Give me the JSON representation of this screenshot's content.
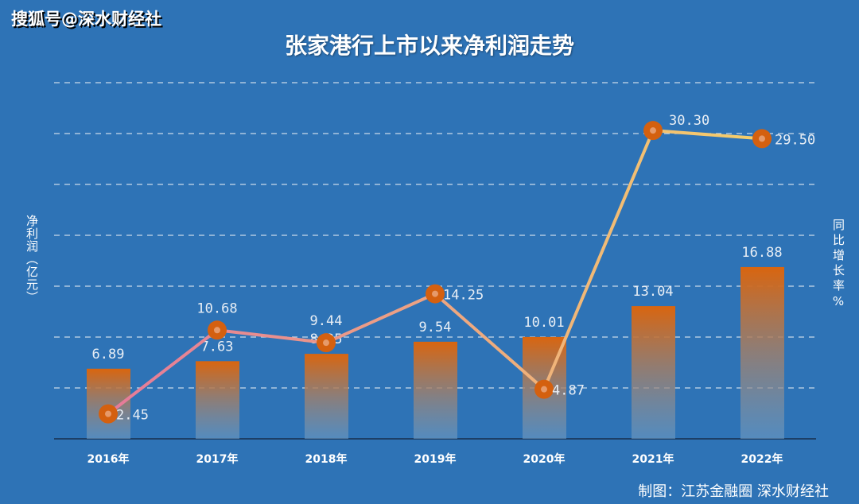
{
  "watermark": "搜狐号@深水财经社",
  "credit": "制图：江苏金融圈 深水财经社",
  "chart_data": {
    "type": "bar+line",
    "title": "张家港行上市以来净利润走势",
    "ylabel": "净利润（亿元）",
    "y2label": "同比增长率%",
    "categories": [
      "2016年",
      "2017年",
      "2018年",
      "2019年",
      "2020年",
      "2021年",
      "2022年"
    ],
    "series": [
      {
        "type": "bar",
        "values": [
          6.89,
          7.63,
          8.35,
          9.54,
          10.01,
          13.04,
          16.88
        ]
      },
      {
        "type": "line",
        "values": [
          2.45,
          10.68,
          9.44,
          14.25,
          4.87,
          30.3,
          29.5
        ]
      }
    ],
    "ylim": [
      0,
      35
    ],
    "grid": true,
    "colors": {
      "background": "#2e73b6",
      "bar_top": "#d9650f",
      "bar_bottom": "#6f9bc2",
      "line_start": "#e57a9a",
      "line_end": "#f5cf6a",
      "marker": "#d4600f"
    }
  }
}
